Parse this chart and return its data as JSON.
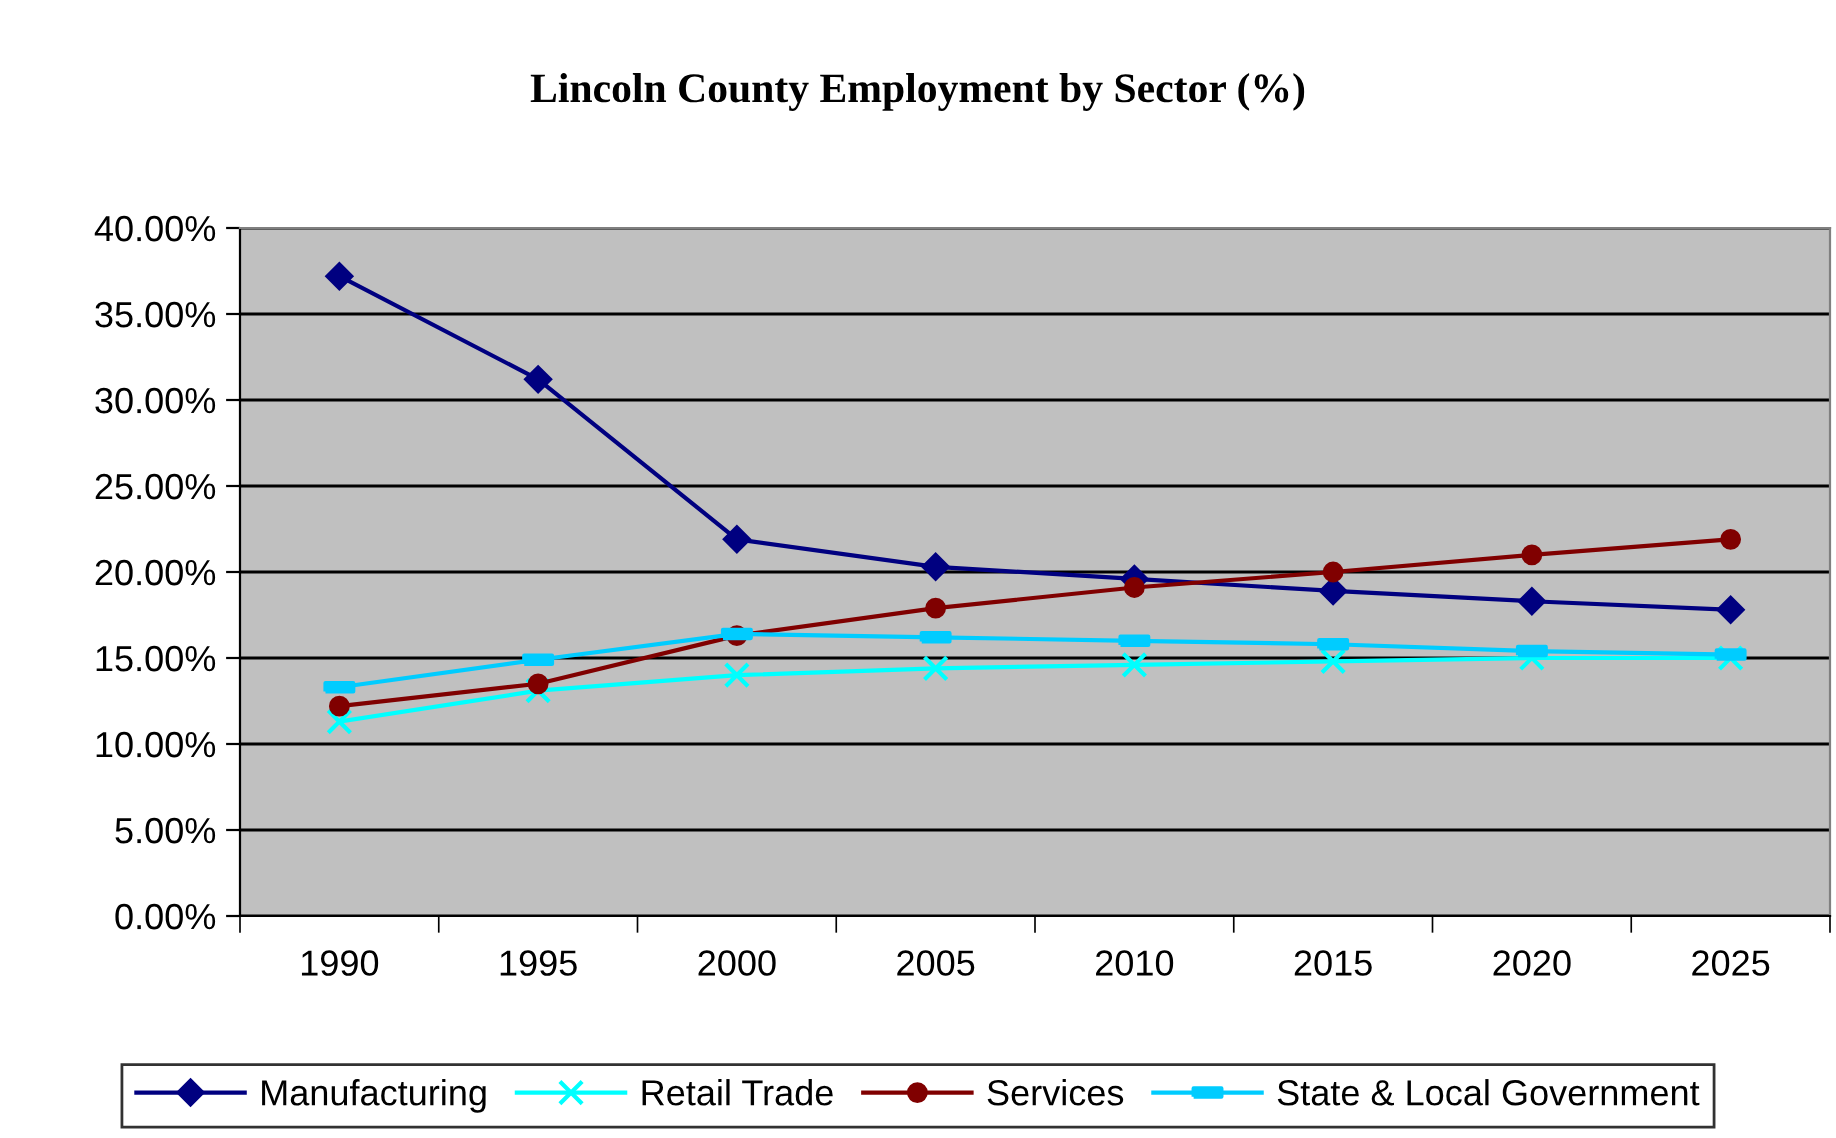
{
  "chart_data": {
    "type": "line",
    "title": "Lincoln County Employment by Sector (%)",
    "categories": [
      "1990",
      "1995",
      "2000",
      "2005",
      "2010",
      "2015",
      "2020",
      "2025"
    ],
    "series": [
      {
        "name": "Manufacturing",
        "color": "#000080",
        "marker": "diamond",
        "values": [
          37.2,
          31.2,
          21.9,
          20.3,
          19.6,
          18.9,
          18.3,
          17.8
        ]
      },
      {
        "name": "Retail Trade",
        "color": "#00ffff",
        "marker": "cross",
        "values": [
          11.3,
          13.1,
          14.0,
          14.4,
          14.6,
          14.8,
          15.0,
          15.0
        ]
      },
      {
        "name": "Services",
        "color": "#800000",
        "marker": "circle",
        "values": [
          12.2,
          13.5,
          16.3,
          17.9,
          19.1,
          20.0,
          21.0,
          21.9
        ]
      },
      {
        "name": "State & Local Government",
        "color": "#00ccff",
        "marker": "square",
        "values": [
          13.3,
          14.9,
          16.4,
          16.2,
          16.0,
          15.8,
          15.4,
          15.2
        ]
      }
    ],
    "ylim": [
      0,
      40
    ],
    "yticks": [
      {
        "value": 0,
        "label": "0.00%"
      },
      {
        "value": 5,
        "label": "5.00%"
      },
      {
        "value": 10,
        "label": "10.00%"
      },
      {
        "value": 15,
        "label": "15.00%"
      },
      {
        "value": 20,
        "label": "20.00%"
      },
      {
        "value": 25,
        "label": "25.00%"
      },
      {
        "value": 30,
        "label": "30.00%"
      },
      {
        "value": 35,
        "label": "35.00%"
      },
      {
        "value": 40,
        "label": "40.00%"
      }
    ],
    "grid": "y",
    "legend": "bottom",
    "line_style": "solid"
  }
}
